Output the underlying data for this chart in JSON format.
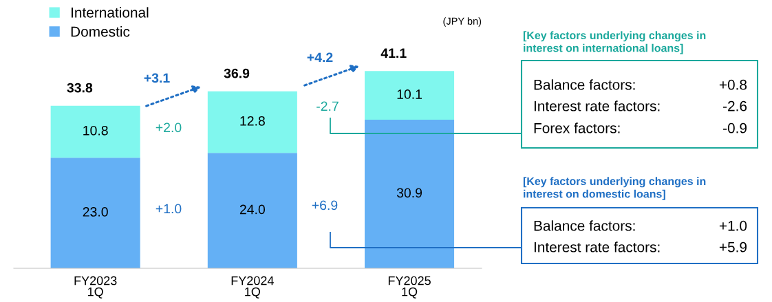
{
  "chart_data": {
    "type": "bar",
    "stacked": true,
    "categories": [
      "FY2023\n1Q",
      "FY2024\n1Q",
      "FY2025\n1Q"
    ],
    "series": [
      {
        "name": "Domestic",
        "color": "#64b0f5",
        "values": [
          23.0,
          24.0,
          30.9
        ],
        "value_labels": [
          "23.0",
          "24.0",
          "30.9"
        ]
      },
      {
        "name": "International",
        "color": "#80f7ee",
        "values": [
          10.8,
          12.8,
          10.1
        ],
        "value_labels": [
          "10.8",
          "12.8",
          "10.1"
        ]
      }
    ],
    "totals": [
      "33.8",
      "36.9",
      "41.1"
    ],
    "legend": "top left",
    "tick_labels": "x",
    "grid": false,
    "annotations": [
      "(JPY bn)",
      "+3.1",
      "+4.2",
      "+2.0",
      "+1.0",
      "-2.7",
      "+6.9",
      "[Key factors underlying changes in\ninterest on international loans]",
      "Balance factors:",
      "+0.8",
      "Interest rate factors:",
      "-2.6",
      "Forex factors:",
      "-0.9",
      "[Key factors underlying changes in\ninterest on domestic loans]",
      "Balance factors:",
      "+1.0",
      "Interest rate factors:",
      "+5.9"
    ]
  }
}
